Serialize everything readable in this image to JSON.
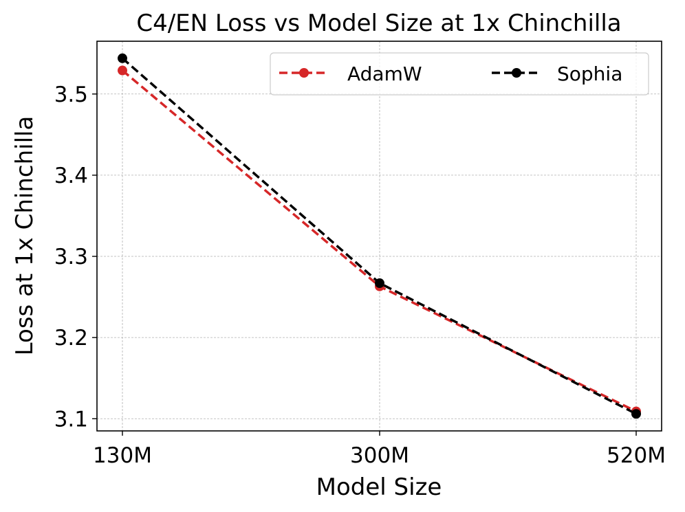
{
  "chart_data": {
    "type": "line",
    "title": "C4/EN Loss vs Model Size at 1x Chinchilla",
    "xlabel": "Model Size",
    "ylabel": "Loss at 1x Chinchilla",
    "categories": [
      "130M",
      "300M",
      "520M"
    ],
    "ylim": [
      3.085,
      3.565
    ],
    "yticks": [
      3.1,
      3.2,
      3.3,
      3.4,
      3.5
    ],
    "grid": true,
    "legend_position": "top-right",
    "series": [
      {
        "name": "AdamW",
        "values": [
          3.529,
          3.263,
          3.109
        ],
        "color": "#d62728",
        "linestyle": "dashed",
        "marker": "circle"
      },
      {
        "name": "Sophia",
        "values": [
          3.544,
          3.267,
          3.106
        ],
        "color": "#000000",
        "linestyle": "dashed",
        "marker": "circle"
      }
    ]
  }
}
